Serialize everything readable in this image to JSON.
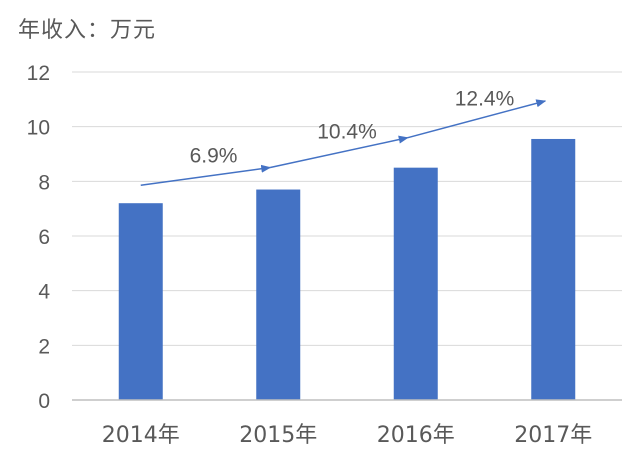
{
  "chart_data": {
    "type": "bar",
    "ylabel": "年收入：万元",
    "categories": [
      "2014年",
      "2015年",
      "2016年",
      "2017年"
    ],
    "series": [
      {
        "values": [
          7.2,
          7.7,
          8.5,
          9.55
        ]
      }
    ],
    "ylim": [
      0,
      12
    ],
    "yticks": [
      0,
      2,
      4,
      6,
      8,
      10,
      12
    ],
    "grid": true,
    "growth_labels": [
      "6.9%",
      "10.4%",
      "12.4%"
    ],
    "colors": {
      "bar": "#4472C4",
      "arrow": "#4472C4",
      "text": "#595959",
      "grid": "#D9D9D9"
    }
  }
}
